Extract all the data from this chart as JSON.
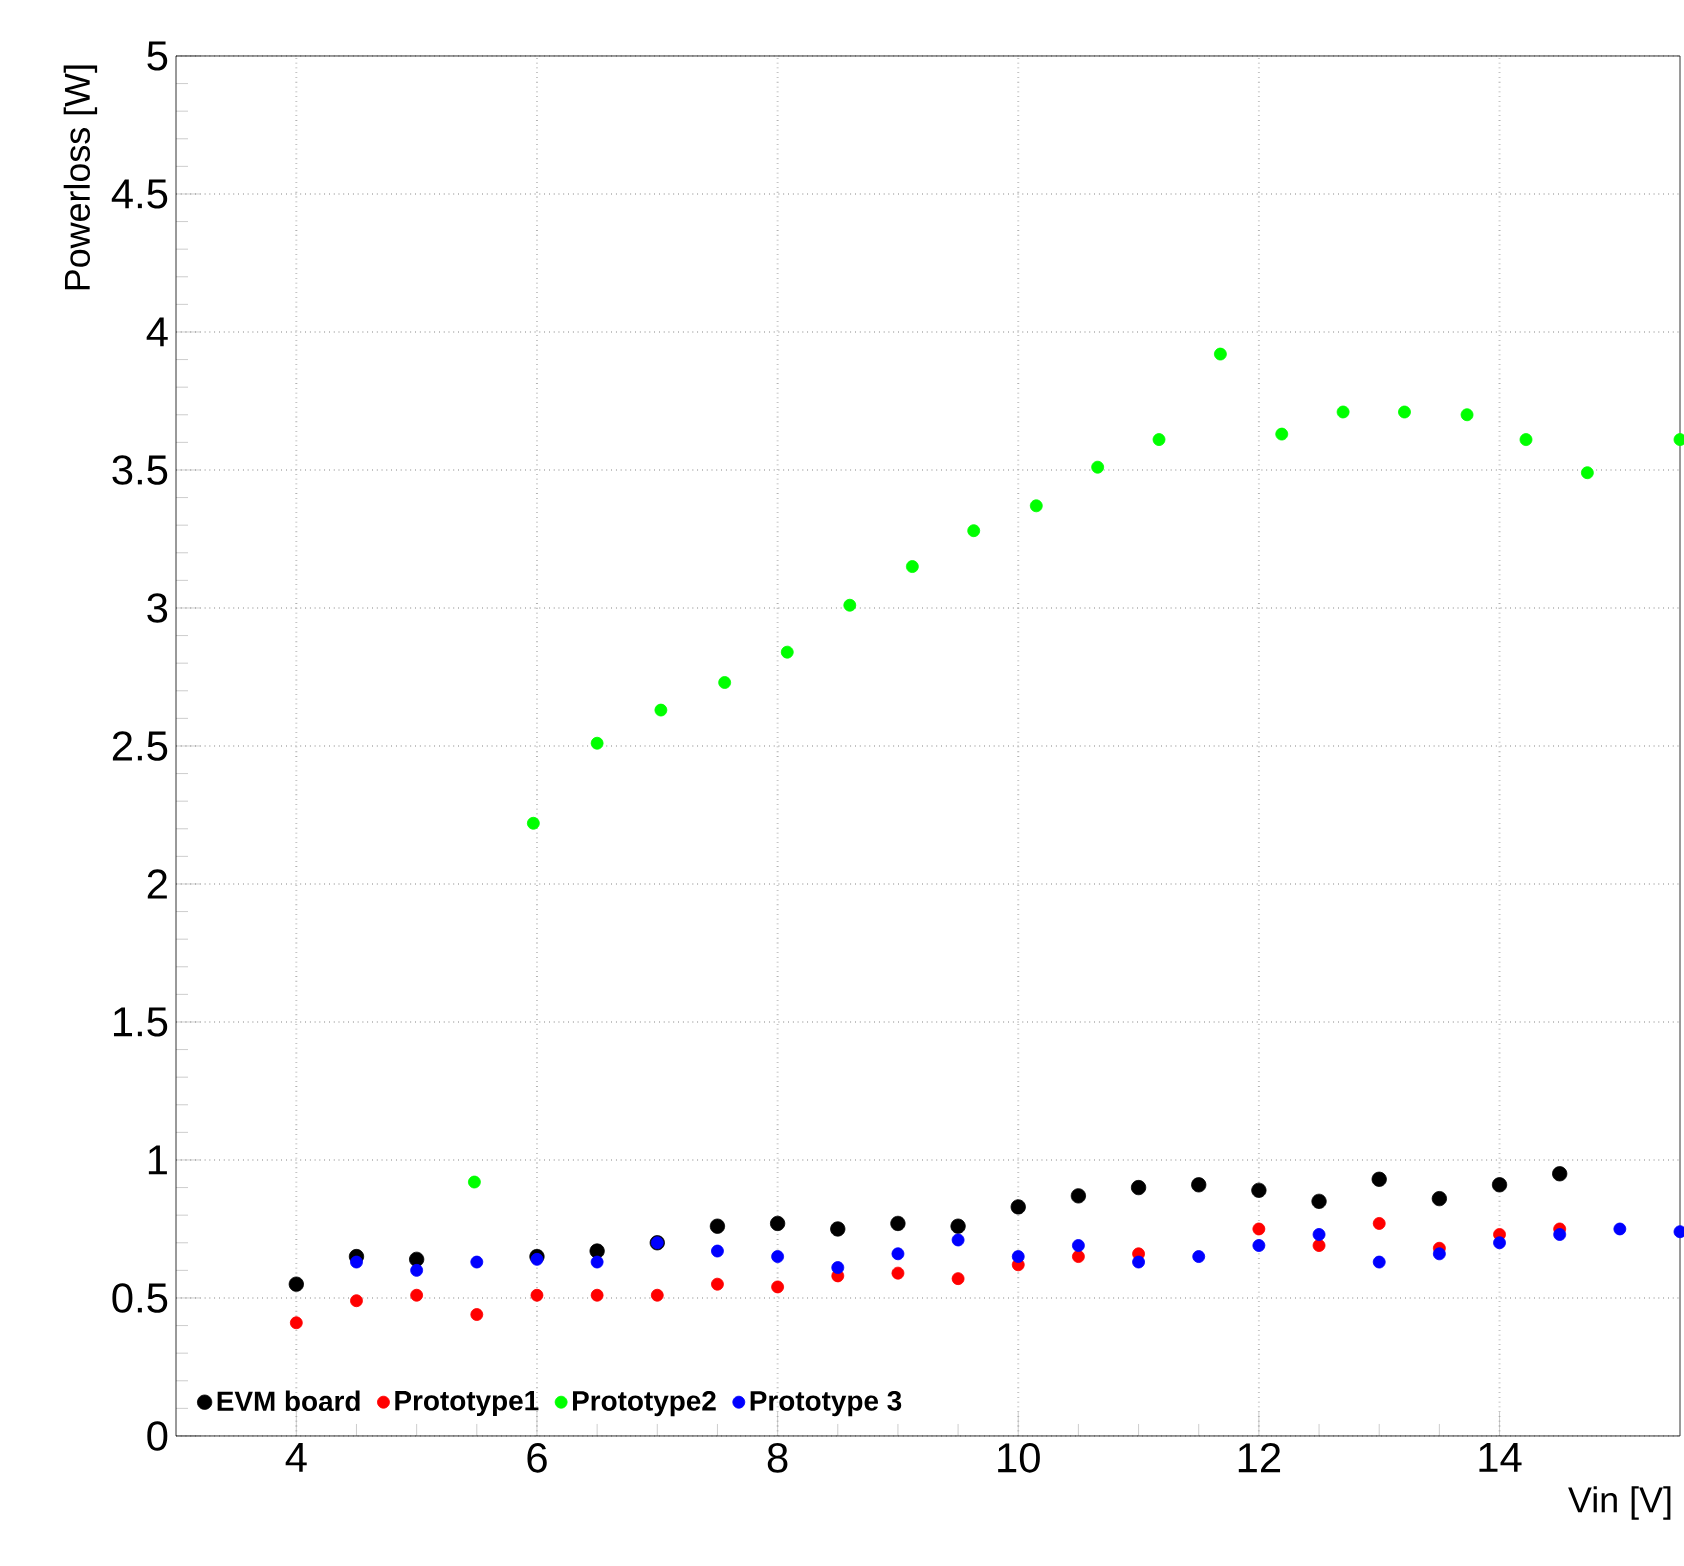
{
  "chart_data": {
    "type": "scatter",
    "xlabel": "Vin [V]",
    "ylabel": "Powerloss [W]",
    "xlim": [
      3,
      15.5
    ],
    "xticks": [
      4,
      6,
      8,
      10,
      12,
      14
    ],
    "ylim": [
      0,
      5
    ],
    "yticks": [
      0,
      0.5,
      1,
      1.5,
      2,
      2.5,
      3,
      3.5,
      4,
      4.5,
      5
    ],
    "grid": true,
    "legend": "bottom left",
    "series": [
      {
        "name": "EVM board",
        "color": "#000000",
        "x": [
          4,
          4.5,
          5,
          6,
          6.5,
          7,
          7.5,
          8,
          8.5,
          9,
          9.5,
          10,
          10.5,
          11,
          11.5,
          12,
          12.5,
          13,
          13.5,
          14,
          14.5
        ],
        "values": [
          0.55,
          0.65,
          0.64,
          0.65,
          0.67,
          0.7,
          0.76,
          0.77,
          0.75,
          0.77,
          0.76,
          0.83,
          0.87,
          0.9,
          0.91,
          0.89,
          0.85,
          0.93,
          0.86,
          0.91,
          0.95
        ]
      },
      {
        "name": "Prototype1",
        "color": "#ff0000",
        "x": [
          4,
          4.5,
          5,
          5.5,
          6,
          6.5,
          7,
          7.5,
          8,
          8.5,
          9,
          9.5,
          10,
          10.5,
          11,
          12,
          12.5,
          13,
          13.5,
          14,
          14.5
        ],
        "values": [
          0.41,
          0.49,
          0.51,
          0.44,
          0.51,
          0.51,
          0.51,
          0.55,
          0.54,
          0.58,
          0.59,
          0.57,
          0.62,
          0.65,
          0.66,
          0.75,
          0.69,
          0.77,
          0.68,
          0.73,
          0.75
        ]
      },
      {
        "name": "Prototype2",
        "color": "#00ff00",
        "x": [
          5.48,
          5.97,
          6.5,
          7.03,
          7.56,
          8.08,
          8.6,
          9.12,
          9.63,
          10.15,
          10.66,
          11.17,
          11.68,
          12.19,
          12.7,
          13.21,
          13.73,
          14.22,
          14.73,
          15.5
        ],
        "values": [
          0.92,
          2.22,
          2.51,
          2.63,
          2.73,
          2.84,
          3.01,
          3.15,
          3.28,
          3.37,
          3.51,
          3.61,
          3.92,
          3.63,
          3.71,
          3.71,
          3.7,
          3.61,
          3.49,
          3.61
        ]
      },
      {
        "name": "Prototype 3",
        "color": "#0000ff",
        "x": [
          4.5,
          5,
          5.5,
          6,
          6.5,
          7,
          7.5,
          8,
          8.5,
          9,
          9.5,
          10,
          10.5,
          11,
          11.5,
          12,
          12.5,
          13,
          13.5,
          14,
          14.5,
          15,
          15.5
        ],
        "values": [
          0.63,
          0.6,
          0.63,
          0.64,
          0.63,
          0.7,
          0.67,
          0.65,
          0.61,
          0.66,
          0.71,
          0.65,
          0.69,
          0.63,
          0.65,
          0.69,
          0.73,
          0.63,
          0.66,
          0.7,
          0.73,
          0.75,
          0.74
        ]
      }
    ]
  }
}
